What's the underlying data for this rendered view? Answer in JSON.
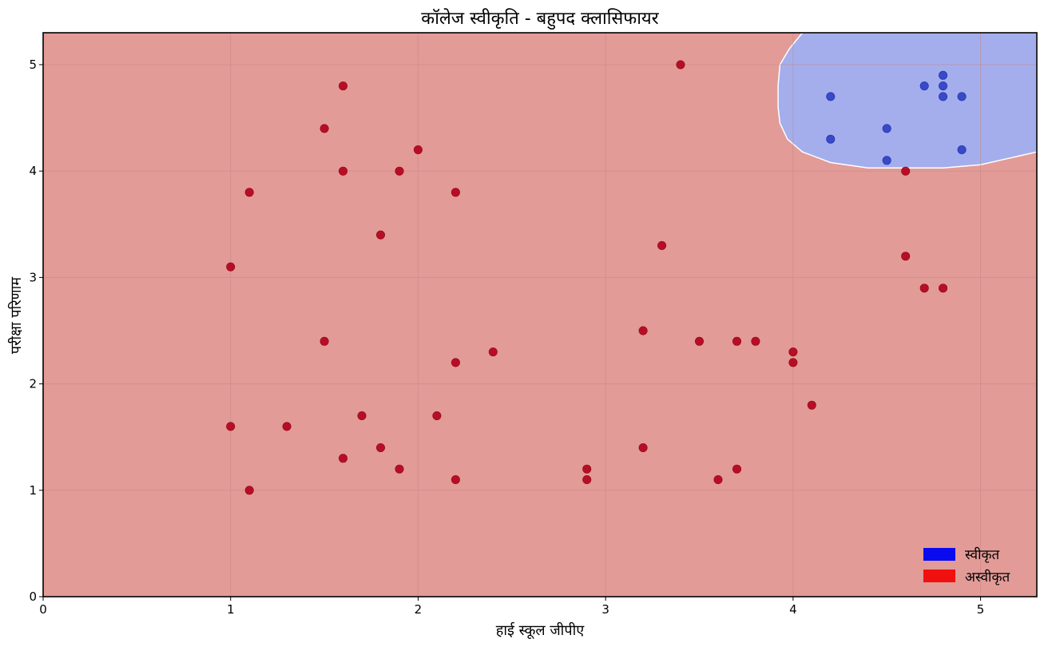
{
  "chart_data": {
    "type": "scatter",
    "title": "कॉलेज स्वीकृति - बहुपद क्लासिफायर",
    "xlabel": "हाई स्कूल जीपीए",
    "ylabel": "परीक्षा परिणाम",
    "xlim": [
      0,
      5.3
    ],
    "ylim": [
      0,
      5.3
    ],
    "xticks": [
      "0",
      "1",
      "2",
      "3",
      "4",
      "5"
    ],
    "yticks": [
      "0",
      "1",
      "2",
      "3",
      "4",
      "5"
    ],
    "grid": true,
    "legend_position": "bottom-right",
    "colors": {
      "accepted_region": "#a4aeec",
      "rejected_region": "#e29b97",
      "accepted_point": "#2c3fc4",
      "rejected_point": "#b5061f",
      "legend_accepted": "#0a0af0",
      "legend_rejected": "#f01010"
    },
    "series": [
      {
        "name": "स्वीकृत",
        "points": [
          [
            4.2,
            4.7
          ],
          [
            4.2,
            4.3
          ],
          [
            4.5,
            4.4
          ],
          [
            4.5,
            4.1
          ],
          [
            4.7,
            4.8
          ],
          [
            4.8,
            4.9
          ],
          [
            4.8,
            4.8
          ],
          [
            4.8,
            4.7
          ],
          [
            4.9,
            4.7
          ],
          [
            4.9,
            4.2
          ]
        ]
      },
      {
        "name": "अस्वीकृत",
        "points": [
          [
            1.0,
            3.1
          ],
          [
            1.0,
            1.6
          ],
          [
            1.1,
            3.8
          ],
          [
            1.1,
            1.0
          ],
          [
            1.3,
            1.6
          ],
          [
            1.5,
            4.4
          ],
          [
            1.5,
            2.4
          ],
          [
            1.6,
            4.8
          ],
          [
            1.6,
            4.0
          ],
          [
            1.6,
            1.3
          ],
          [
            1.7,
            1.7
          ],
          [
            1.8,
            3.4
          ],
          [
            1.8,
            1.4
          ],
          [
            1.9,
            4.0
          ],
          [
            1.9,
            1.2
          ],
          [
            2.0,
            4.2
          ],
          [
            2.1,
            1.7
          ],
          [
            2.2,
            3.8
          ],
          [
            2.2,
            2.2
          ],
          [
            2.2,
            1.1
          ],
          [
            2.4,
            2.3
          ],
          [
            2.9,
            1.2
          ],
          [
            2.9,
            1.1
          ],
          [
            3.2,
            2.5
          ],
          [
            3.2,
            1.4
          ],
          [
            3.3,
            3.3
          ],
          [
            3.4,
            5.0
          ],
          [
            3.5,
            2.4
          ],
          [
            3.6,
            1.1
          ],
          [
            3.7,
            2.4
          ],
          [
            3.7,
            1.2
          ],
          [
            3.8,
            2.4
          ],
          [
            4.0,
            2.3
          ],
          [
            4.0,
            2.2
          ],
          [
            4.1,
            1.8
          ],
          [
            4.6,
            4.0
          ],
          [
            4.6,
            3.2
          ],
          [
            4.7,
            2.9
          ],
          [
            4.8,
            2.9
          ]
        ]
      }
    ],
    "decision_boundary": [
      [
        4.05,
        5.3
      ],
      [
        3.98,
        5.15
      ],
      [
        3.93,
        5.0
      ],
      [
        3.92,
        4.8
      ],
      [
        3.92,
        4.6
      ],
      [
        3.93,
        4.45
      ],
      [
        3.97,
        4.3
      ],
      [
        4.05,
        4.18
      ],
      [
        4.2,
        4.08
      ],
      [
        4.4,
        4.03
      ],
      [
        4.6,
        4.03
      ],
      [
        4.8,
        4.03
      ],
      [
        5.0,
        4.06
      ],
      [
        5.15,
        4.12
      ],
      [
        5.3,
        4.18
      ]
    ]
  }
}
